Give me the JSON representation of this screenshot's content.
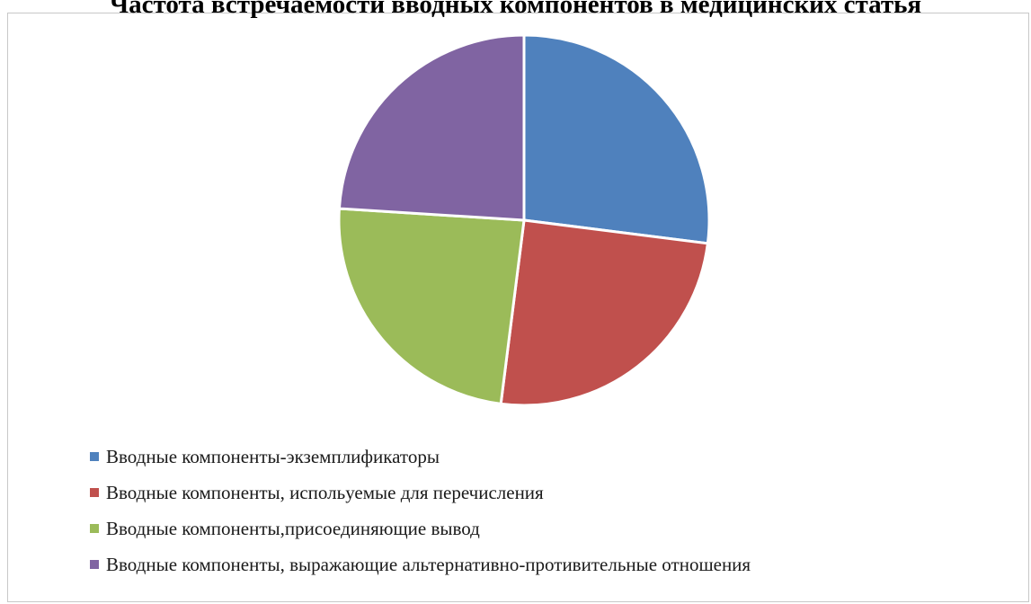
{
  "chart_data": {
    "type": "pie",
    "title": "Частота встречаемости вводных компонентов в медицинских статья",
    "categories": [
      "Вводные компоненты-экземплификаторы",
      "Вводные компоненты, испольуемые для перечисления",
      "Вводные компоненты,присоединяющие вывод",
      "Вводные компоненты, выражающие альтернативно-противительные отношения"
    ],
    "values": [
      27,
      25,
      24,
      24
    ],
    "colors": [
      "#4F81BD",
      "#C0504D",
      "#9BBB59",
      "#8064A2"
    ],
    "legend_position": "bottom"
  }
}
